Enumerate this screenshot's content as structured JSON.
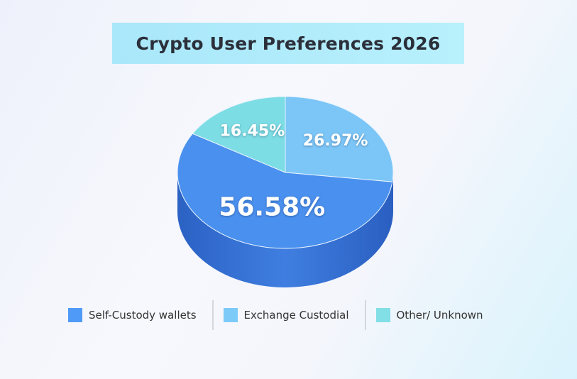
{
  "chart_data": {
    "type": "pie",
    "title": "Crypto User Preferences 2026",
    "slices": [
      {
        "name": "Exchange Custodial",
        "value": 26.97,
        "label": "26.97%",
        "color": "#7cc6f7"
      },
      {
        "name": "Self-Custody wallets",
        "value": 56.58,
        "label": "56.58%",
        "color": "#4a90ee"
      },
      {
        "name": "Other/ Unknown",
        "value": 16.45,
        "label": "16.45%",
        "color": "#7ddde5"
      }
    ],
    "legend": [
      {
        "label": "Self-Custody wallets",
        "color": "#4f9af6"
      },
      {
        "label": "Exchange Custodial",
        "color": "#7ccaf7"
      },
      {
        "label": "Other/ Unknown",
        "color": "#82dfe6"
      }
    ],
    "legend_position": "bottom"
  }
}
